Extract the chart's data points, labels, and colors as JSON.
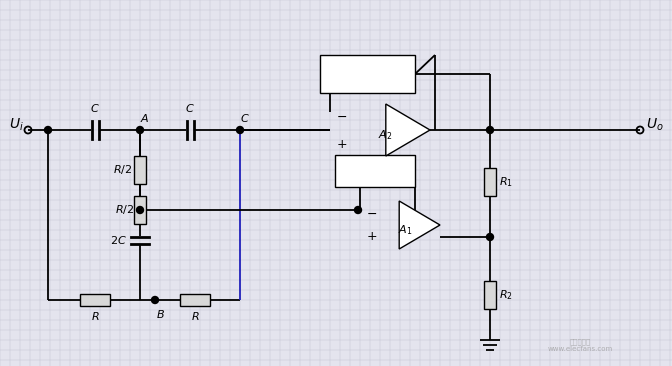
{
  "bg_color": "#e4e4ee",
  "grid_color": "#c0c0d0",
  "line_color": "#000000",
  "blue_line_color": "#2222bb",
  "component_fill": "#d8d8d8",
  "fig_width": 6.72,
  "fig_height": 3.66,
  "dpi": 100
}
